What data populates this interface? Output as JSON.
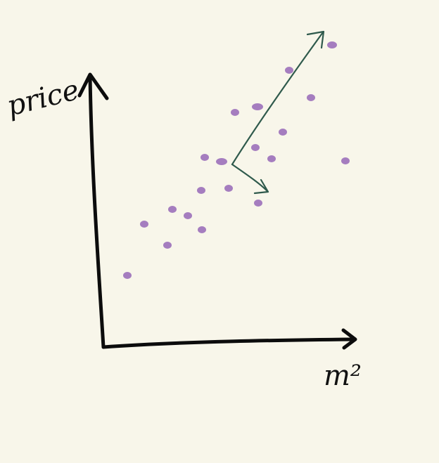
{
  "axes": {
    "y_label": "price",
    "x_label": "m²"
  }
}
